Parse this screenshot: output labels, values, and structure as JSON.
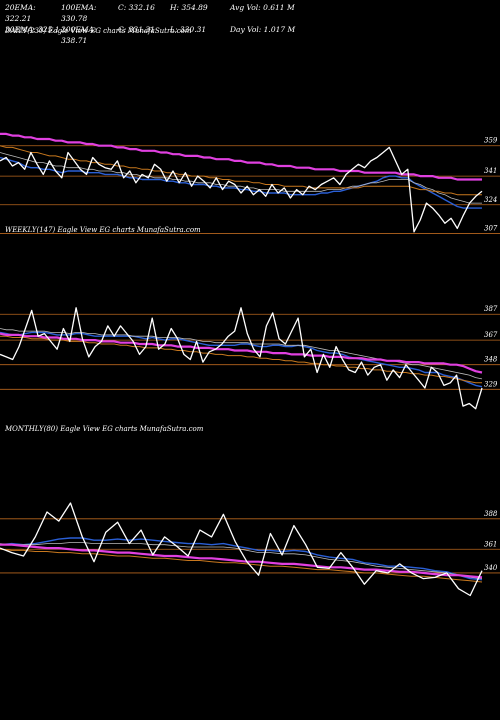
{
  "stats": {
    "row1": [
      "20EMA: 322.21",
      "100EMA: 330.78",
      "C: 332.16",
      "H: 354.89",
      "Avg Vol: 0.611 M"
    ],
    "row2": [
      "30EMA: 325.1",
      "200EMA: 338.71",
      "C: 331.31",
      "L: 330.31",
      "Day Vol: 1.017 M"
    ]
  },
  "colors": {
    "background": "#000000",
    "price": "#ffffff",
    "ema_blue": "#2a5fd6",
    "ema_magenta": "#e040e0",
    "ema_orange": "#c8781e",
    "ema_gray": "#bbbbbb",
    "gridline": "#b8661e"
  },
  "chart_data": [
    {
      "type": "line",
      "title": "DAILY(230) Eagle View EG charts MunafaSutra.com",
      "y_ticks": [
        359,
        341,
        324,
        307
      ],
      "ylim": [
        296,
        379
      ],
      "grid": true,
      "series": [
        {
          "role": "price",
          "color": "price",
          "values": [
            350,
            352,
            347,
            349,
            345,
            355,
            348,
            342,
            350,
            344,
            340,
            355,
            350,
            345,
            342,
            352,
            348,
            346,
            345,
            350,
            340,
            344,
            337,
            342,
            340,
            348,
            345,
            338,
            344,
            337,
            343,
            335,
            341,
            338,
            334,
            340,
            333,
            338,
            336,
            331,
            335,
            330,
            333,
            329,
            336,
            331,
            334,
            328,
            333,
            330,
            335,
            333,
            336,
            338,
            340,
            336,
            342,
            345,
            348,
            346,
            350,
            352,
            355,
            358,
            350,
            342,
            345,
            308,
            315,
            325,
            322,
            318,
            313,
            316,
            310,
            318,
            325,
            329,
            332
          ]
        },
        {
          "role": "ema",
          "color": "ema_blue",
          "values": [
            352,
            351,
            350,
            349,
            347,
            346,
            346,
            345,
            345,
            344,
            343,
            344,
            344,
            344,
            343,
            343,
            343,
            342,
            342,
            342,
            341,
            340,
            340,
            339,
            339,
            339,
            339,
            338,
            338,
            337,
            337,
            336,
            336,
            336,
            335,
            335,
            334,
            334,
            334,
            333,
            333,
            332,
            332,
            331,
            331,
            331,
            331,
            330,
            330,
            330,
            330,
            330,
            331,
            331,
            332,
            332,
            333,
            334,
            335,
            336,
            337,
            338,
            340,
            341,
            341,
            340,
            340,
            337,
            335,
            333,
            331,
            329,
            327,
            325,
            323,
            322,
            322,
            322,
            322
          ]
        },
        {
          "role": "ema",
          "color": "ema_gray",
          "values": [
            355,
            354,
            353,
            352,
            351,
            350,
            349,
            349,
            348,
            347,
            347,
            346,
            346,
            346,
            345,
            345,
            344,
            344,
            344,
            343,
            343,
            342,
            342,
            341,
            341,
            340,
            340,
            340,
            339,
            339,
            338,
            338,
            337,
            337,
            337,
            336,
            336,
            335,
            335,
            335,
            334,
            334,
            333,
            333,
            333,
            333,
            332,
            332,
            332,
            332,
            332,
            332,
            332,
            333,
            333,
            333,
            334,
            335,
            335,
            336,
            337,
            337,
            338,
            339,
            339,
            339,
            339,
            337,
            336,
            334,
            333,
            331,
            330,
            328,
            327,
            326,
            325,
            325,
            325
          ]
        },
        {
          "role": "ema",
          "color": "ema_orange",
          "values": [
            359,
            358,
            358,
            357,
            356,
            355,
            355,
            354,
            353,
            353,
            352,
            351,
            351,
            350,
            350,
            349,
            349,
            348,
            348,
            347,
            347,
            346,
            346,
            345,
            345,
            344,
            344,
            343,
            343,
            342,
            342,
            341,
            341,
            341,
            340,
            340,
            339,
            339,
            338,
            338,
            338,
            337,
            337,
            336,
            336,
            336,
            335,
            335,
            335,
            335,
            334,
            334,
            334,
            334,
            334,
            334,
            334,
            334,
            334,
            335,
            335,
            335,
            335,
            335,
            335,
            335,
            335,
            334,
            333,
            333,
            332,
            332,
            331,
            331,
            330,
            330,
            330,
            330,
            330
          ]
        },
        {
          "role": "ema",
          "color": "ema_magenta",
          "values": [
            366,
            366,
            365,
            365,
            364,
            364,
            363,
            363,
            363,
            362,
            362,
            361,
            361,
            361,
            360,
            360,
            359,
            359,
            359,
            358,
            358,
            357,
            357,
            356,
            356,
            356,
            355,
            355,
            354,
            354,
            353,
            353,
            353,
            352,
            352,
            351,
            351,
            351,
            350,
            350,
            349,
            349,
            349,
            348,
            348,
            347,
            347,
            347,
            346,
            346,
            346,
            345,
            345,
            345,
            345,
            344,
            344,
            344,
            344,
            343,
            343,
            343,
            343,
            343,
            343,
            342,
            342,
            342,
            341,
            341,
            341,
            340,
            340,
            340,
            339,
            339,
            339,
            339,
            339
          ]
        }
      ]
    },
    {
      "type": "line",
      "title": "WEEKLY(147) Eagle View EG charts MunafaSutra.com",
      "y_ticks": [
        387,
        367,
        348,
        329
      ],
      "ylim": [
        313,
        398
      ],
      "grid": true,
      "series": [
        {
          "role": "price",
          "color": "price",
          "values": [
            356,
            354,
            352,
            362,
            376,
            390,
            370,
            372,
            366,
            360,
            376,
            366,
            392,
            368,
            354,
            362,
            366,
            378,
            370,
            378,
            372,
            366,
            356,
            362,
            384,
            360,
            364,
            376,
            368,
            356,
            352,
            366,
            350,
            358,
            360,
            364,
            370,
            374,
            392,
            372,
            360,
            354,
            378,
            388,
            368,
            364,
            374,
            384,
            354,
            360,
            342,
            356,
            346,
            362,
            352,
            344,
            342,
            350,
            340,
            346,
            348,
            336,
            344,
            338,
            348,
            342,
            336,
            330,
            346,
            342,
            332,
            334,
            340,
            316,
            318,
            314,
            330
          ]
        },
        {
          "role": "ema",
          "color": "ema_blue",
          "values": [
            373,
            372,
            371,
            371,
            372,
            373,
            373,
            373,
            372,
            371,
            371,
            371,
            372,
            372,
            371,
            370,
            370,
            370,
            370,
            370,
            370,
            370,
            369,
            368,
            369,
            368,
            367,
            368,
            368,
            367,
            366,
            365,
            364,
            363,
            363,
            363,
            363,
            363,
            364,
            364,
            363,
            362,
            362,
            363,
            363,
            362,
            362,
            363,
            362,
            361,
            359,
            358,
            357,
            357,
            356,
            354,
            353,
            352,
            351,
            350,
            349,
            348,
            347,
            346,
            346,
            345,
            344,
            342,
            342,
            342,
            340,
            339,
            338,
            336,
            334,
            332,
            331
          ]
        },
        {
          "role": "ema",
          "color": "ema_gray",
          "values": [
            376,
            375,
            375,
            374,
            374,
            374,
            374,
            374,
            373,
            373,
            373,
            372,
            373,
            373,
            372,
            372,
            371,
            371,
            371,
            371,
            371,
            370,
            370,
            370,
            370,
            369,
            369,
            369,
            369,
            368,
            368,
            367,
            366,
            366,
            365,
            365,
            365,
            365,
            365,
            365,
            364,
            364,
            364,
            364,
            364,
            363,
            363,
            363,
            363,
            362,
            361,
            360,
            359,
            359,
            358,
            357,
            356,
            355,
            354,
            353,
            352,
            351,
            351,
            350,
            349,
            348,
            348,
            347,
            346,
            345,
            344,
            343,
            342,
            341,
            340,
            338,
            337
          ]
        },
        {
          "role": "ema",
          "color": "ema_orange",
          "values": [
            370,
            370,
            369,
            369,
            369,
            368,
            368,
            368,
            367,
            367,
            367,
            366,
            366,
            366,
            365,
            365,
            364,
            364,
            364,
            363,
            363,
            362,
            362,
            361,
            361,
            361,
            360,
            360,
            359,
            359,
            358,
            358,
            357,
            357,
            356,
            356,
            355,
            355,
            355,
            354,
            354,
            353,
            353,
            352,
            352,
            351,
            351,
            350,
            350,
            349,
            349,
            348,
            348,
            347,
            347,
            346,
            346,
            345,
            345,
            344,
            344,
            343,
            343,
            342,
            342,
            341,
            341,
            340,
            340,
            339,
            339,
            338,
            337,
            336,
            335,
            334,
            334
          ]
        },
        {
          "role": "ema",
          "color": "ema_magenta",
          "values": [
            372,
            371,
            371,
            371,
            370,
            370,
            370,
            369,
            369,
            369,
            368,
            368,
            368,
            367,
            367,
            367,
            366,
            366,
            366,
            365,
            365,
            365,
            364,
            364,
            364,
            363,
            363,
            363,
            362,
            362,
            362,
            361,
            361,
            361,
            360,
            360,
            360,
            359,
            359,
            359,
            358,
            358,
            358,
            357,
            357,
            357,
            356,
            356,
            356,
            355,
            355,
            355,
            354,
            354,
            354,
            353,
            353,
            353,
            352,
            352,
            352,
            351,
            351,
            351,
            350,
            350,
            350,
            349,
            349,
            349,
            349,
            348,
            348,
            347,
            345,
            343,
            342
          ]
        }
      ]
    },
    {
      "type": "line",
      "title": "MONTHLY(80) Eagle View EG charts MunafaSutra.com",
      "y_ticks": [
        388,
        361,
        340
      ],
      "ylim": [
        316,
        410
      ],
      "grid": true,
      "series": [
        {
          "role": "price",
          "color": "price",
          "values": [
            362,
            358,
            355,
            372,
            394,
            386,
            402,
            372,
            350,
            376,
            385,
            366,
            378,
            356,
            372,
            364,
            355,
            378,
            372,
            392,
            368,
            350,
            338,
            375,
            356,
            382,
            365,
            345,
            344,
            358,
            345,
            330,
            342,
            340,
            348,
            340,
            335,
            336,
            340,
            326,
            320,
            342
          ]
        },
        {
          "role": "ema",
          "color": "ema_blue",
          "values": [
            365,
            366,
            365,
            366,
            368,
            370,
            371,
            371,
            369,
            369,
            370,
            369,
            370,
            369,
            368,
            367,
            366,
            366,
            365,
            366,
            364,
            362,
            360,
            360,
            359,
            360,
            359,
            356,
            354,
            353,
            352,
            349,
            348,
            346,
            346,
            345,
            344,
            342,
            341,
            338,
            335,
            334
          ]
        },
        {
          "role": "ema",
          "color": "ema_gray",
          "values": [
            366,
            365,
            365,
            365,
            366,
            366,
            367,
            367,
            366,
            366,
            366,
            366,
            366,
            365,
            365,
            364,
            363,
            363,
            363,
            363,
            362,
            360,
            358,
            358,
            357,
            357,
            356,
            354,
            352,
            351,
            350,
            348,
            346,
            345,
            344,
            343,
            342,
            341,
            340,
            338,
            336,
            335
          ]
        },
        {
          "role": "ema",
          "color": "ema_orange",
          "values": [
            361,
            360,
            360,
            359,
            359,
            358,
            358,
            357,
            357,
            356,
            355,
            355,
            354,
            353,
            353,
            352,
            351,
            351,
            350,
            349,
            349,
            348,
            347,
            346,
            346,
            345,
            344,
            343,
            343,
            342,
            341,
            340,
            340,
            339,
            338,
            337,
            337,
            336,
            335,
            334,
            333,
            332
          ]
        },
        {
          "role": "ema",
          "color": "ema_magenta",
          "values": [
            365,
            365,
            364,
            363,
            362,
            362,
            361,
            360,
            360,
            359,
            358,
            358,
            357,
            356,
            355,
            355,
            354,
            353,
            353,
            352,
            351,
            350,
            350,
            349,
            348,
            348,
            347,
            346,
            345,
            345,
            344,
            343,
            343,
            342,
            341,
            341,
            340,
            339,
            338,
            338,
            337,
            336
          ]
        }
      ]
    }
  ]
}
